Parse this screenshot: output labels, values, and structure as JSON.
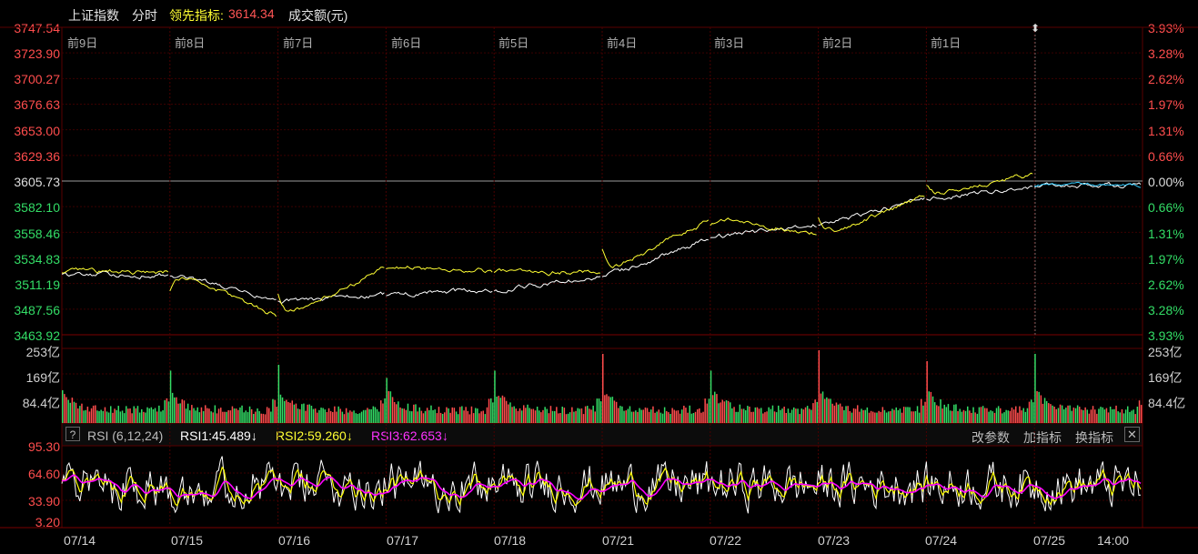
{
  "header": {
    "index_name": "上证指数",
    "mode": "分时",
    "leading_label": "领先指标:",
    "leading_value": "3614.34",
    "volume_label": "成交额(元)"
  },
  "price_axis": {
    "left": [
      "3747.54",
      "3723.90",
      "3700.27",
      "3676.63",
      "3653.00",
      "3629.36",
      "3605.73",
      "3582.10",
      "3558.46",
      "3534.83",
      "3511.19",
      "3487.56",
      "3463.92"
    ],
    "right": [
      "3.93%",
      "3.28%",
      "2.62%",
      "1.97%",
      "1.31%",
      "0.66%",
      "0.00%",
      "0.66%",
      "1.31%",
      "1.97%",
      "2.62%",
      "3.28%",
      "3.93%"
    ]
  },
  "day_labels": [
    "前9日",
    "前8日",
    "前7日",
    "前6日",
    "前5日",
    "前4日",
    "前3日",
    "前2日",
    "前1日"
  ],
  "volume_axis": {
    "left": [
      "253亿",
      "169亿",
      "84.4亿"
    ],
    "right": [
      "253亿",
      "169亿",
      "84.4亿"
    ]
  },
  "rsi": {
    "help": "?",
    "title": "RSI (6,12,24)",
    "rsi1": "RSI1:45.489↓",
    "rsi2": "RSI2:59.260↓",
    "rsi3": "RSI3:62.653↓",
    "buttons": [
      "改参数",
      "加指标",
      "换指标"
    ],
    "close": "✕",
    "axis": [
      "95.30",
      "64.60",
      "33.90",
      "3.20"
    ]
  },
  "dates": [
    "07/14",
    "07/15",
    "07/16",
    "07/17",
    "07/18",
    "07/21",
    "07/22",
    "07/23",
    "07/24",
    "07/25",
    "14:00"
  ],
  "colors": {
    "up": "#ff4d4d",
    "down": "#33dd66",
    "index_line": "#ffffff",
    "leading_line": "#ffff33",
    "rsi1": "#ffffff",
    "rsi2": "#ffff00",
    "rsi3": "#ff00ff",
    "grid": "#5a0000"
  },
  "chart_data": {
    "type": "line",
    "ylim": [
      3463.92,
      3747.54
    ],
    "reference": 3605.73,
    "x": [
      "07/14",
      "07/15",
      "07/16",
      "07/17",
      "07/18",
      "07/21",
      "07/22",
      "07/23",
      "07/24",
      "07/25"
    ],
    "series": [
      {
        "name": "上证指数",
        "values": [
          3519,
          3494,
          3501,
          3505,
          3518,
          3554,
          3566,
          3590,
          3601,
          3602
        ]
      },
      {
        "name": "领先指标",
        "values": [
          3522,
          3480,
          3527,
          3522,
          3522,
          3572,
          3556,
          3593,
          3613,
          3614
        ]
      }
    ]
  }
}
